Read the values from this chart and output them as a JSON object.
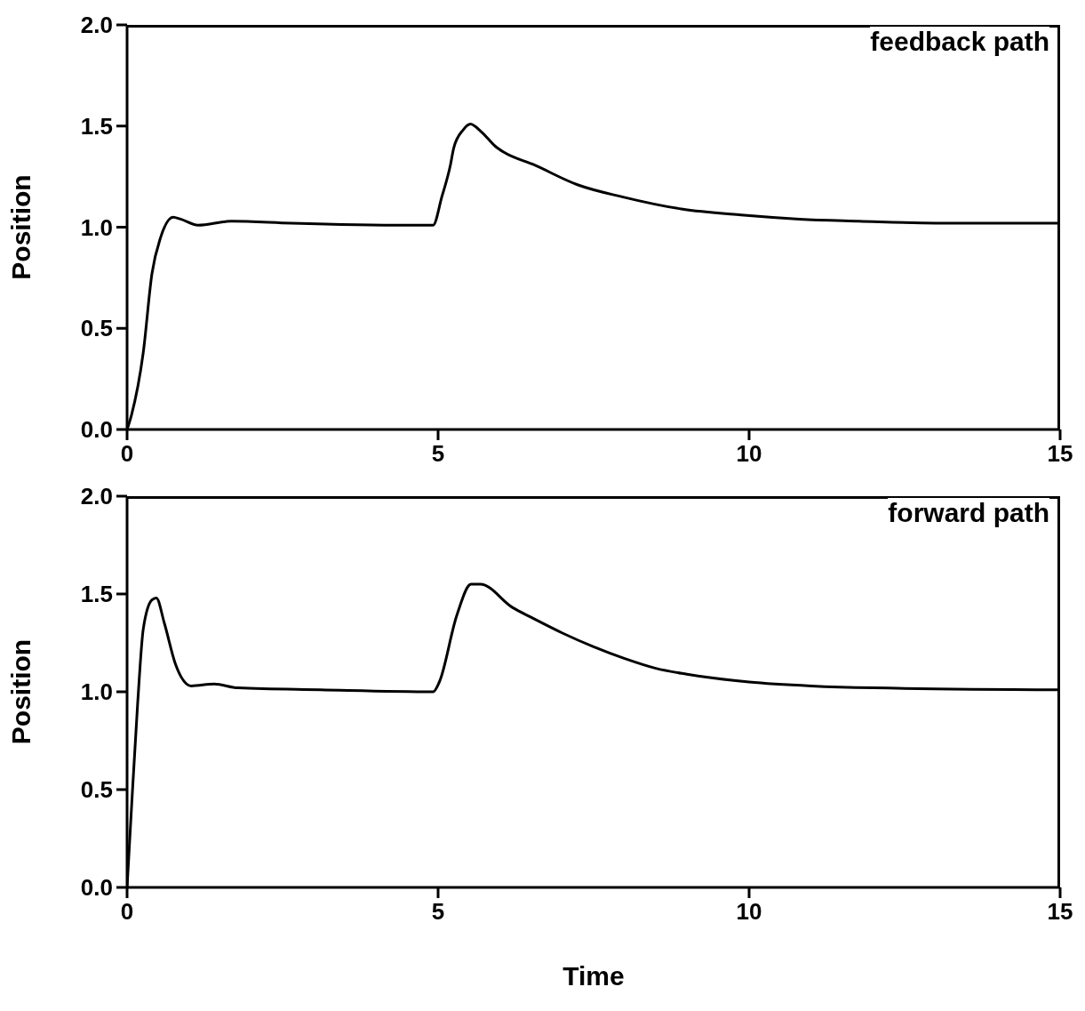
{
  "chart_data": [
    {
      "type": "line",
      "ylabel": "Position",
      "annotations": [
        "feedback path"
      ],
      "xlim": [
        0,
        15
      ],
      "xticks": [
        0,
        5,
        10,
        15
      ],
      "ylim": [
        0,
        2
      ],
      "yticks": [
        {
          "value": 0,
          "label": "0.0"
        },
        {
          "value": 0.5,
          "label": "0.5"
        },
        {
          "value": 1,
          "label": "1.0"
        },
        {
          "value": 1.5,
          "label": "1.5"
        },
        {
          "value": 2,
          "label": "2.0"
        }
      ],
      "grid": false,
      "legend": false,
      "marker": "none",
      "line_style": "solid",
      "series": [
        {
          "color": "#000000",
          "x": [
            0,
            0.07,
            0.26,
            0.4,
            0.54,
            0.74,
            0.86,
            1.14,
            1.68,
            2.64,
            4.53,
            4.92,
            5.06,
            5.2,
            5.25,
            5.4,
            5.52,
            5.7,
            5.92,
            6.06,
            6.53,
            7.24,
            7.96,
            8.91,
            9.87,
            10.81,
            11.76,
            13,
            15
          ],
          "values": [
            0,
            0.07,
            0.38,
            0.77,
            0.95,
            1.05,
            1.04,
            1.01,
            1.03,
            1.02,
            1.01,
            1.01,
            1.15,
            1.31,
            1.39,
            1.48,
            1.51,
            1.47,
            1.4,
            1.37,
            1.31,
            1.21,
            1.15,
            1.09,
            1.06,
            1.04,
            1.03,
            1.02,
            1.02
          ]
        }
      ]
    },
    {
      "type": "line",
      "xlabel": "Time",
      "ylabel": "Position",
      "annotations": [
        "forward path"
      ],
      "xlim": [
        0,
        15
      ],
      "xticks": [
        0,
        5,
        10,
        15
      ],
      "ylim": [
        0,
        2
      ],
      "yticks": [
        {
          "value": 0,
          "label": "0.0"
        },
        {
          "value": 0.5,
          "label": "0.5"
        },
        {
          "value": 1,
          "label": "1.0"
        },
        {
          "value": 1.5,
          "label": "1.5"
        },
        {
          "value": 2,
          "label": "2.0"
        }
      ],
      "grid": false,
      "legend": false,
      "marker": "none",
      "line_style": "solid",
      "series": [
        {
          "color": "#000000",
          "x": [
            0,
            0.07,
            0.17,
            0.26,
            0.4,
            0.47,
            0.6,
            0.78,
            1.03,
            1.4,
            1.78,
            3.11,
            4.92,
            5.02,
            5.3,
            5.53,
            5.68,
            6.2,
            6.5,
            7,
            7.5,
            8,
            8.5,
            9,
            10,
            11,
            12,
            15
          ],
          "values": [
            0,
            0.4,
            0.94,
            1.32,
            1.47,
            1.48,
            1.35,
            1.14,
            1.03,
            1.04,
            1.02,
            1.01,
            1,
            1.05,
            1.39,
            1.55,
            1.55,
            1.43,
            1.38,
            1.3,
            1.23,
            1.17,
            1.12,
            1.09,
            1.05,
            1.03,
            1.02,
            1.01
          ]
        }
      ]
    }
  ]
}
